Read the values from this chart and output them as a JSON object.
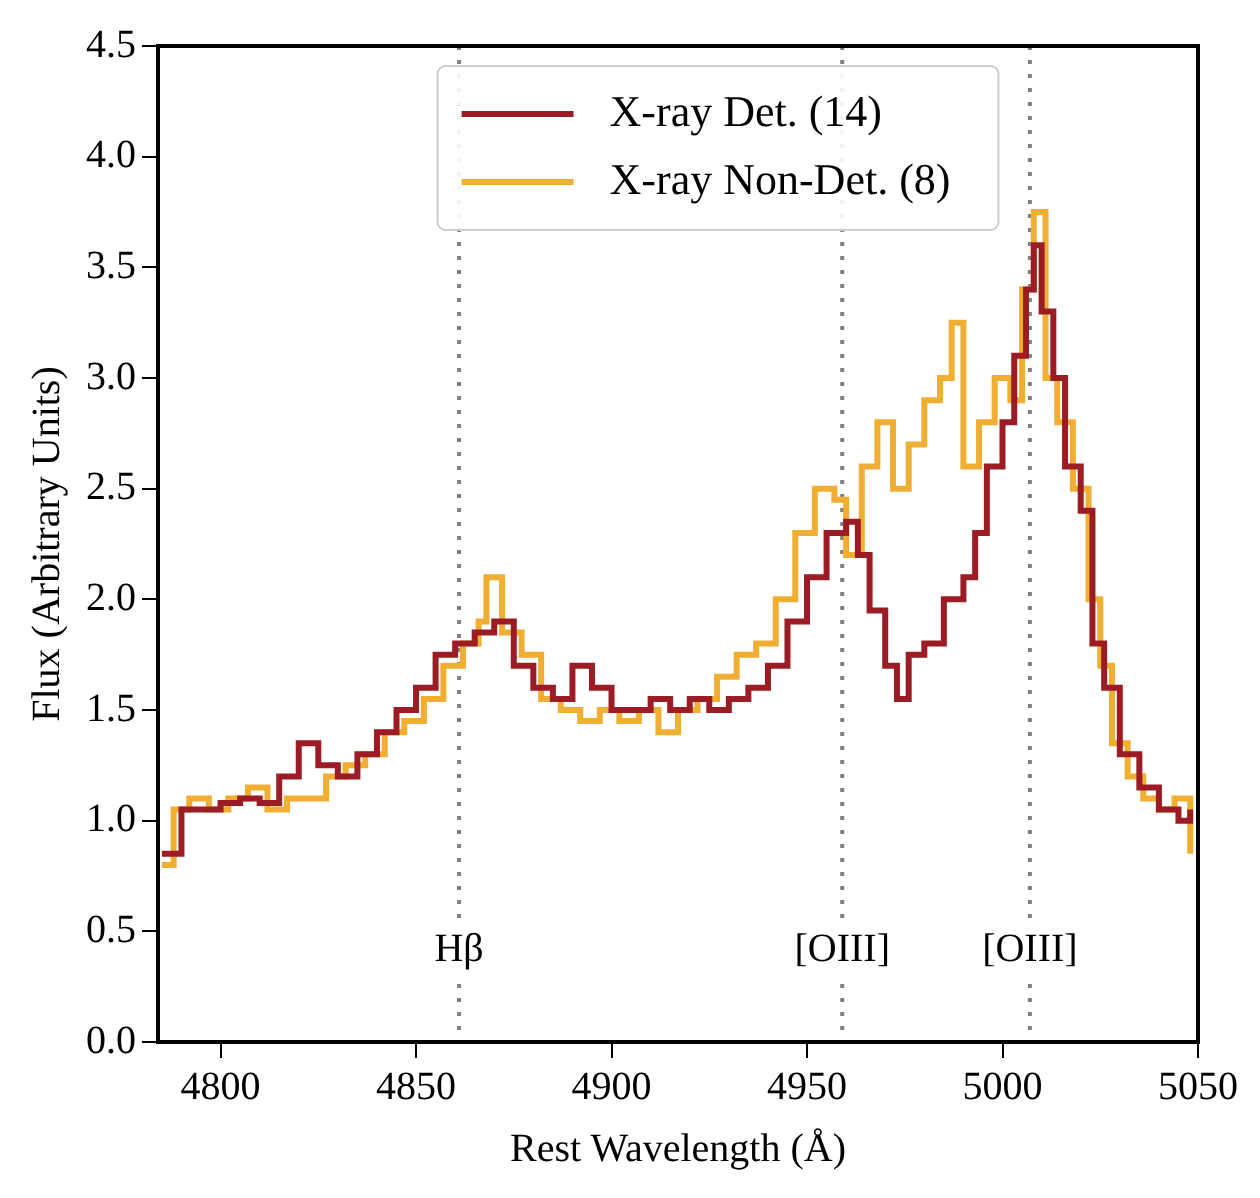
{
  "chart_data": {
    "type": "step",
    "xlabel": "Rest Wavelength (Å)",
    "ylabel": "Flux (Arbitrary Units)",
    "legend": "top",
    "xlim": [
      4784,
      5050
    ],
    "xticks": [
      4800,
      4850,
      4900,
      4950,
      5000,
      5050
    ],
    "ylim": [
      0,
      4.5
    ],
    "yticks": [
      {
        "value": 0,
        "label": "0.0"
      },
      {
        "value": 0.5,
        "label": "0.5"
      },
      {
        "value": 1,
        "label": "1.0"
      },
      {
        "value": 1.5,
        "label": "1.5"
      },
      {
        "value": 2,
        "label": "2.0"
      },
      {
        "value": 2.5,
        "label": "2.5"
      },
      {
        "value": 3,
        "label": "3.0"
      },
      {
        "value": 3.5,
        "label": "3.5"
      },
      {
        "value": 4,
        "label": "4.0"
      },
      {
        "value": 4.5,
        "label": "4.5"
      }
    ],
    "ref_lines": [
      {
        "axis": "x",
        "value": 4861,
        "label": "Hβ",
        "color": "#808080",
        "line_style": "dotted"
      },
      {
        "axis": "x",
        "value": 4959,
        "label": "[OIII]",
        "color": "#808080",
        "line_style": "dotted"
      },
      {
        "axis": "x",
        "value": 5007,
        "label": "[OIII]",
        "color": "#808080",
        "line_style": "dotted"
      }
    ],
    "series": [
      {
        "name": "X-ray Det. (14)",
        "color": "#9b1c24",
        "x": [
          4785,
          4790,
          4795,
          4800,
          4805,
          4810,
          4815,
          4820,
          4825,
          4830,
          4835,
          4840,
          4845,
          4850,
          4855,
          4860,
          4865,
          4870,
          4875,
          4880,
          4885,
          4890,
          4895,
          4900,
          4905,
          4910,
          4915,
          4920,
          4925,
          4930,
          4935,
          4940,
          4945,
          4950,
          4955,
          4960,
          4963,
          4966,
          4970,
          4973,
          4976,
          4980,
          4985,
          4990,
          4993,
          4996,
          5000,
          5003,
          5006,
          5008,
          5010,
          5013,
          5016,
          5020,
          5023,
          5026,
          5030,
          5035,
          5040,
          5045,
          5048
        ],
        "values": [
          0.85,
          1.05,
          1.05,
          1.08,
          1.1,
          1.08,
          1.2,
          1.35,
          1.25,
          1.2,
          1.3,
          1.4,
          1.5,
          1.6,
          1.75,
          1.8,
          1.85,
          1.9,
          1.7,
          1.6,
          1.55,
          1.7,
          1.6,
          1.5,
          1.5,
          1.55,
          1.5,
          1.55,
          1.5,
          1.55,
          1.6,
          1.7,
          1.9,
          2.1,
          2.3,
          2.35,
          2.2,
          1.95,
          1.7,
          1.55,
          1.75,
          1.8,
          2.0,
          2.1,
          2.3,
          2.6,
          2.8,
          3.1,
          3.4,
          3.6,
          3.3,
          3.0,
          2.6,
          2.4,
          1.8,
          1.6,
          1.3,
          1.15,
          1.05,
          1.0,
          1.05
        ]
      },
      {
        "name": "X-ray Non-Det. (8)",
        "color": "#f0ae32",
        "x": [
          4785,
          4788,
          4792,
          4797,
          4802,
          4807,
          4812,
          4817,
          4822,
          4827,
          4832,
          4837,
          4842,
          4847,
          4852,
          4857,
          4862,
          4866,
          4868,
          4872,
          4877,
          4882,
          4887,
          4892,
          4897,
          4902,
          4907,
          4912,
          4917,
          4922,
          4927,
          4932,
          4937,
          4942,
          4947,
          4952,
          4957,
          4960,
          4964,
          4968,
          4972,
          4976,
          4980,
          4984,
          4987,
          4990,
          4994,
          4998,
          5002,
          5005,
          5008,
          5011,
          5014,
          5018,
          5022,
          5025,
          5028,
          5032,
          5036,
          5040,
          5044,
          5048
        ],
        "values": [
          0.8,
          1.05,
          1.1,
          1.05,
          1.1,
          1.15,
          1.05,
          1.1,
          1.1,
          1.2,
          1.25,
          1.3,
          1.4,
          1.45,
          1.55,
          1.7,
          1.8,
          1.9,
          2.1,
          1.85,
          1.75,
          1.55,
          1.5,
          1.45,
          1.5,
          1.45,
          1.5,
          1.4,
          1.5,
          1.55,
          1.65,
          1.75,
          1.8,
          2.0,
          2.3,
          2.5,
          2.45,
          2.2,
          2.6,
          2.8,
          2.5,
          2.7,
          2.9,
          3.0,
          3.25,
          2.6,
          2.8,
          3.0,
          2.9,
          3.4,
          3.75,
          3.0,
          2.8,
          2.5,
          2.0,
          1.7,
          1.35,
          1.2,
          1.1,
          1.05,
          1.1,
          0.85
        ]
      }
    ]
  }
}
